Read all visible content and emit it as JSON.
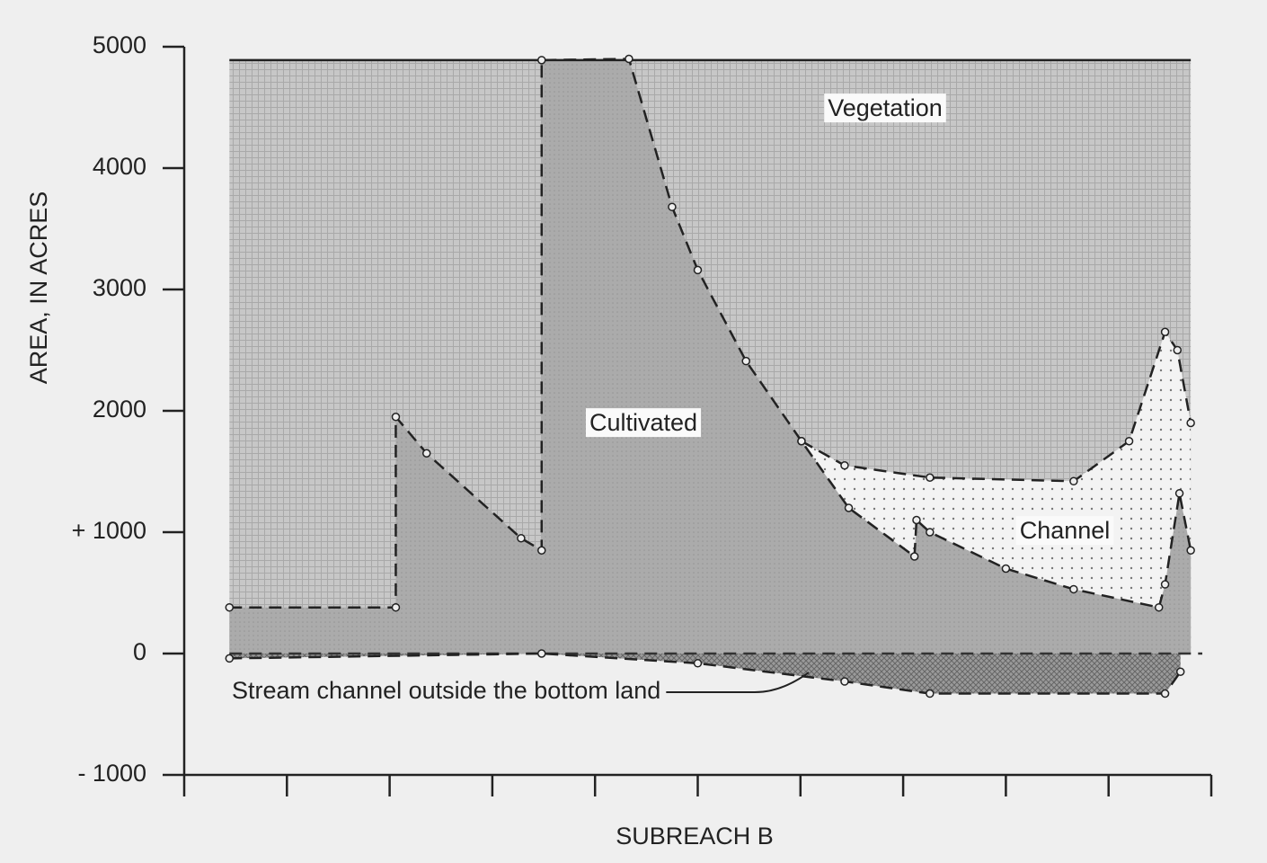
{
  "chart_data": {
    "type": "area",
    "xlabel": "SUBREACH B",
    "ylabel": "AREA, IN ACRES",
    "xlim": [
      0,
      10
    ],
    "xticks": [
      0,
      1,
      2,
      3,
      4,
      5,
      6,
      7,
      8,
      9,
      10
    ],
    "ylim": [
      -1000,
      5000
    ],
    "yticks": [
      {
        "value": -1000,
        "label": "- 1000"
      },
      0,
      {
        "value": 1000,
        "label": "+ 1000"
      },
      2000,
      3000,
      4000,
      5000
    ],
    "series": [
      {
        "name": "Vegetation",
        "color": "#c4c4c4",
        "dashed": false,
        "x": [
          0.44,
          9.8
        ],
        "values": [
          4890,
          4890
        ]
      },
      {
        "name": "Cultivated",
        "color": "#f3f3f3",
        "dashed": true,
        "x": [
          6.01,
          6.43,
          7.26,
          8.66,
          9.2,
          9.55,
          9.67,
          9.8
        ],
        "values": [
          1750,
          1550,
          1450,
          1420,
          1750,
          2650,
          2500,
          1900
        ]
      },
      {
        "name": "Channel",
        "color": "#a9a9a9",
        "dashed": true,
        "x": [
          0.44,
          2.06,
          2.06,
          2.36,
          3.28,
          3.48,
          3.48,
          4.33,
          4.75,
          5.0,
          5.47,
          6.01,
          6.47,
          7.11,
          7.13,
          7.26,
          8.0,
          8.66,
          9.49,
          9.55,
          9.69,
          9.8
        ],
        "values": [
          380,
          380,
          1950,
          1650,
          950,
          850,
          4890,
          4900,
          3680,
          3160,
          2410,
          1750,
          1200,
          800,
          1100,
          1000,
          700,
          530,
          380,
          570,
          1320,
          850
        ]
      },
      {
        "name": "Stream channel outside the bottom land",
        "color": "#8e8e8e",
        "dashed": true,
        "x": [
          0.44,
          3.48,
          5.0,
          6.43,
          7.26,
          9.55,
          9.7
        ],
        "values": [
          -40,
          0,
          -80,
          -230,
          -330,
          -330,
          -150
        ]
      }
    ]
  }
}
